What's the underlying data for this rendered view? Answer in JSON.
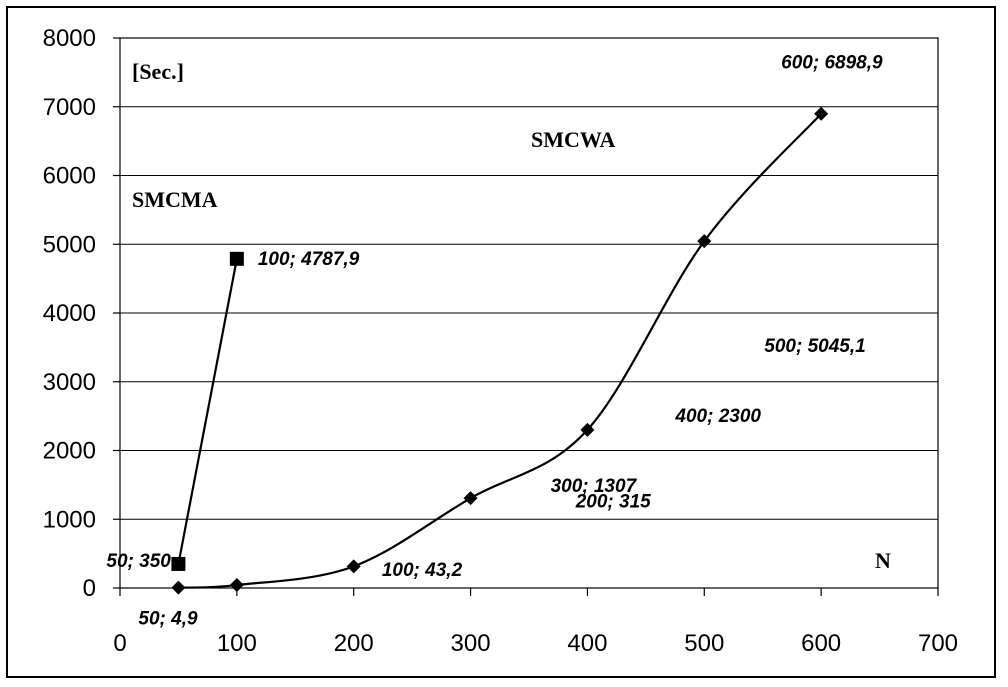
{
  "chart_data": {
    "type": "line",
    "x_ticks": [
      "0",
      "100",
      "200",
      "300",
      "400",
      "500",
      "600",
      "700"
    ],
    "y_ticks": [
      "0",
      "1000",
      "2000",
      "3000",
      "4000",
      "5000",
      "6000",
      "7000",
      "8000"
    ],
    "xlim": [
      0,
      700
    ],
    "ylim": [
      0,
      8000
    ],
    "grid": "horizontal",
    "ylabel": "[Sec.]",
    "xlabel": "N",
    "series": [
      {
        "name": "SMCMA",
        "marker": "square",
        "smooth": false,
        "x": [
          50,
          100
        ],
        "y": [
          350,
          4787.9
        ],
        "labels": [
          "50; 350",
          "100; 4787,9"
        ]
      },
      {
        "name": "SMCWA",
        "marker": "diamond",
        "smooth": true,
        "x": [
          50,
          100,
          200,
          300,
          400,
          500,
          600
        ],
        "y": [
          4.9,
          43.2,
          315,
          1307,
          2300,
          5045.1,
          6898.9
        ],
        "labels": [
          "50; 4,9",
          "100; 43,2",
          "200; 315",
          "300; 1307",
          "400; 2300",
          "500; 5045,1",
          "600; 6898,9"
        ]
      }
    ],
    "colors": {
      "line": "#000000",
      "grid": "#000000",
      "background": "#ffffff"
    }
  }
}
